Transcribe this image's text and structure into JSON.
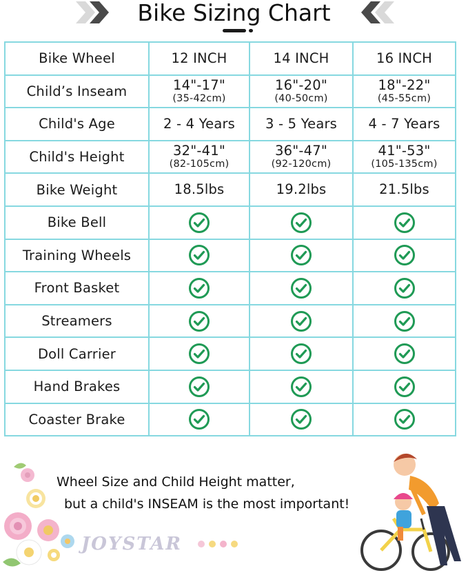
{
  "header": {
    "title": "Bike Sizing Chart"
  },
  "table": {
    "rows": [
      {
        "label": "Bike Wheel",
        "values": [
          {
            "main": "12 INCH"
          },
          {
            "main": "14 INCH"
          },
          {
            "main": "16 INCH"
          }
        ]
      },
      {
        "label": "Child’s Inseam",
        "values": [
          {
            "main": "14\"-17\"",
            "sub": "(35-42cm)"
          },
          {
            "main": "16\"-20\"",
            "sub": "(40-50cm)"
          },
          {
            "main": "18\"-22\"",
            "sub": "(45-55cm)"
          }
        ]
      },
      {
        "label": "Child's Age",
        "values": [
          {
            "main": "2 - 4 Years"
          },
          {
            "main": "3 - 5 Years"
          },
          {
            "main": "4 - 7 Years"
          }
        ]
      },
      {
        "label": "Child's Height",
        "values": [
          {
            "main": "32\"-41\"",
            "sub": "(82-105cm)"
          },
          {
            "main": "36\"-47\"",
            "sub": "(92-120cm)"
          },
          {
            "main": "41\"-53\"",
            "sub": "(105-135cm)"
          }
        ]
      },
      {
        "label": "Bike Weight",
        "values": [
          {
            "main": "18.5lbs"
          },
          {
            "main": "19.2lbs"
          },
          {
            "main": "21.5lbs"
          }
        ]
      },
      {
        "label": "Bike Bell",
        "check": true
      },
      {
        "label": "Training Wheels",
        "check": true
      },
      {
        "label": "Front Basket",
        "check": true
      },
      {
        "label": "Streamers",
        "check": true
      },
      {
        "label": "Doll Carrier",
        "check": true
      },
      {
        "label": "Hand Brakes",
        "check": true
      },
      {
        "label": "Coaster Brake",
        "check": true
      }
    ],
    "check_icon": "check-circle-icon",
    "border_color": "#86d8e0",
    "check_color": "#1f9a55"
  },
  "footer": {
    "line1": "Wheel Size and Child Height matter,",
    "line2": "but a child's INSEAM is the most important!",
    "brand": "JOYSTAR"
  }
}
